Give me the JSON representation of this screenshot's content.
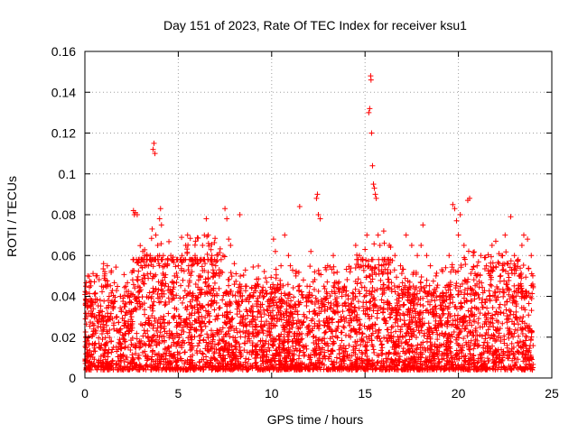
{
  "chart_data": {
    "type": "scatter",
    "title": "Day 151 of 2023, Rate Of TEC Index for receiver ksu1",
    "xlabel": "GPS time / hours",
    "ylabel": "ROTI / TECUs",
    "xlim": [
      0,
      25
    ],
    "ylim": [
      0,
      0.16
    ],
    "xticks": [
      0,
      5,
      10,
      15,
      20,
      25
    ],
    "yticks": [
      0,
      0.02,
      0.04,
      0.06,
      0.08,
      0.1,
      0.12,
      0.14,
      0.16
    ],
    "xtick_labels": [
      "0",
      "5",
      "10",
      "15",
      "20",
      "25"
    ],
    "ytick_labels": [
      "0",
      "0.02",
      "0.04",
      "0.06",
      "0.08",
      "0.1",
      "0.12",
      "0.14",
      "0.16"
    ],
    "grid": true,
    "marker": "+",
    "color": "#ff0000",
    "series": [
      {
        "name": "ROTI",
        "points": [
          [
            0.05,
            0.045
          ],
          [
            0.1,
            0.03
          ],
          [
            0.15,
            0.05
          ],
          [
            0.2,
            0.02
          ],
          [
            0.3,
            0.035
          ],
          [
            0.5,
            0.03
          ],
          [
            0.7,
            0.025
          ],
          [
            0.9,
            0.045
          ],
          [
            1.0,
            0.056
          ],
          [
            1.05,
            0.05
          ],
          [
            1.1,
            0.048
          ],
          [
            1.2,
            0.055
          ],
          [
            1.3,
            0.04
          ],
          [
            1.5,
            0.035
          ],
          [
            1.7,
            0.03
          ],
          [
            1.9,
            0.04
          ],
          [
            2.1,
            0.035
          ],
          [
            2.3,
            0.04
          ],
          [
            2.5,
            0.03
          ],
          [
            2.6,
            0.082
          ],
          [
            2.65,
            0.08
          ],
          [
            2.7,
            0.081
          ],
          [
            2.8,
            0.08
          ],
          [
            2.85,
            0.045
          ],
          [
            3.0,
            0.055
          ],
          [
            3.1,
            0.062
          ],
          [
            3.2,
            0.06
          ],
          [
            3.3,
            0.058
          ],
          [
            3.4,
            0.055
          ],
          [
            3.5,
            0.06
          ],
          [
            3.6,
            0.073
          ],
          [
            3.65,
            0.112
          ],
          [
            3.7,
            0.115
          ],
          [
            3.75,
            0.11
          ],
          [
            3.8,
            0.07
          ],
          [
            3.9,
            0.065
          ],
          [
            4.0,
            0.078
          ],
          [
            4.05,
            0.083
          ],
          [
            4.1,
            0.075
          ],
          [
            4.2,
            0.06
          ],
          [
            4.4,
            0.055
          ],
          [
            4.6,
            0.06
          ],
          [
            4.8,
            0.05
          ],
          [
            5.0,
            0.055
          ],
          [
            5.2,
            0.06
          ],
          [
            5.4,
            0.065
          ],
          [
            5.5,
            0.07
          ],
          [
            5.7,
            0.055
          ],
          [
            5.9,
            0.06
          ],
          [
            6.1,
            0.05
          ],
          [
            6.3,
            0.065
          ],
          [
            6.5,
            0.078
          ],
          [
            6.6,
            0.07
          ],
          [
            6.8,
            0.06
          ],
          [
            7.0,
            0.055
          ],
          [
            7.2,
            0.05
          ],
          [
            7.4,
            0.06
          ],
          [
            7.5,
            0.083
          ],
          [
            7.6,
            0.078
          ],
          [
            7.7,
            0.068
          ],
          [
            7.8,
            0.065
          ],
          [
            8.0,
            0.056
          ],
          [
            8.3,
            0.08
          ],
          [
            8.6,
            0.045
          ],
          [
            9.0,
            0.04
          ],
          [
            9.3,
            0.045
          ],
          [
            9.6,
            0.04
          ],
          [
            9.9,
            0.035
          ],
          [
            10.1,
            0.068
          ],
          [
            10.2,
            0.062
          ],
          [
            10.5,
            0.055
          ],
          [
            10.7,
            0.07
          ],
          [
            10.9,
            0.06
          ],
          [
            11.0,
            0.055
          ],
          [
            11.3,
            0.05
          ],
          [
            11.5,
            0.084
          ],
          [
            11.7,
            0.048
          ],
          [
            11.9,
            0.045
          ],
          [
            12.1,
            0.062
          ],
          [
            12.3,
            0.052
          ],
          [
            12.4,
            0.088
          ],
          [
            12.45,
            0.09
          ],
          [
            12.5,
            0.08
          ],
          [
            12.6,
            0.078
          ],
          [
            12.8,
            0.045
          ],
          [
            13.0,
            0.055
          ],
          [
            13.3,
            0.06
          ],
          [
            13.6,
            0.047
          ],
          [
            13.9,
            0.045
          ],
          [
            14.2,
            0.052
          ],
          [
            14.5,
            0.065
          ],
          [
            14.7,
            0.06
          ],
          [
            15.0,
            0.063
          ],
          [
            15.1,
            0.07
          ],
          [
            15.2,
            0.13
          ],
          [
            15.25,
            0.132
          ],
          [
            15.3,
            0.148
          ],
          [
            15.32,
            0.146
          ],
          [
            15.35,
            0.12
          ],
          [
            15.4,
            0.104
          ],
          [
            15.45,
            0.095
          ],
          [
            15.5,
            0.093
          ],
          [
            15.55,
            0.09
          ],
          [
            15.6,
            0.088
          ],
          [
            15.7,
            0.07
          ],
          [
            15.8,
            0.065
          ],
          [
            16.0,
            0.072
          ],
          [
            16.3,
            0.065
          ],
          [
            16.6,
            0.06
          ],
          [
            16.9,
            0.055
          ],
          [
            17.2,
            0.07
          ],
          [
            17.5,
            0.065
          ],
          [
            17.8,
            0.06
          ],
          [
            18.0,
            0.065
          ],
          [
            18.1,
            0.075
          ],
          [
            18.3,
            0.06
          ],
          [
            18.5,
            0.055
          ],
          [
            18.8,
            0.05
          ],
          [
            19.0,
            0.04
          ],
          [
            19.5,
            0.06
          ],
          [
            19.7,
            0.085
          ],
          [
            19.8,
            0.083
          ],
          [
            19.9,
            0.077
          ],
          [
            20.0,
            0.07
          ],
          [
            20.1,
            0.08
          ],
          [
            20.3,
            0.065
          ],
          [
            20.5,
            0.087
          ],
          [
            20.6,
            0.088
          ],
          [
            20.8,
            0.06
          ],
          [
            21.0,
            0.055
          ],
          [
            21.2,
            0.06
          ],
          [
            21.5,
            0.055
          ],
          [
            21.8,
            0.065
          ],
          [
            22.0,
            0.067
          ],
          [
            22.3,
            0.06
          ],
          [
            22.5,
            0.07
          ],
          [
            22.8,
            0.079
          ],
          [
            23.0,
            0.06
          ],
          [
            23.2,
            0.058
          ],
          [
            23.4,
            0.065
          ],
          [
            23.5,
            0.07
          ],
          [
            23.7,
            0.068
          ],
          [
            23.9,
            0.06
          ],
          [
            24.0,
            0.045
          ]
        ]
      }
    ],
    "dense_band": {
      "floor": 0.004,
      "typical_max": 0.03,
      "range": [
        0,
        24
      ]
    }
  }
}
